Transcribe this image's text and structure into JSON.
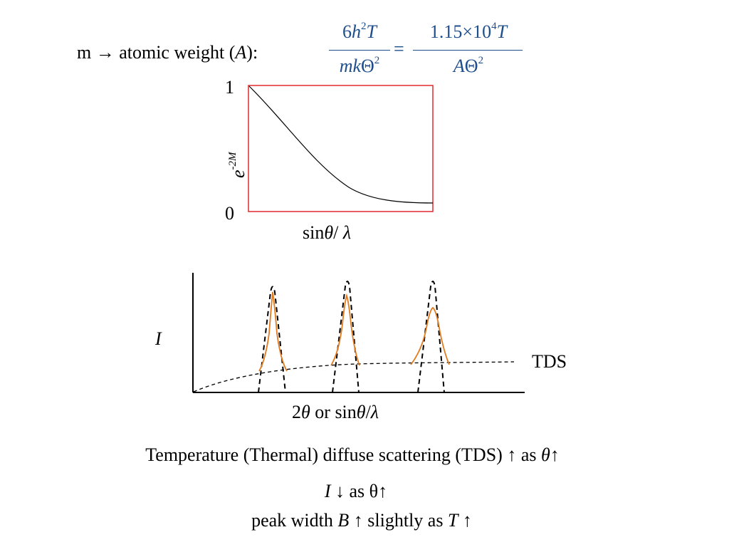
{
  "formula": {
    "prefix": "m → atomic weight (",
    "prefix_var": "A",
    "prefix_close": "):",
    "frac1_num": {
      "coef": "6",
      "h": "h",
      "h_exp": "2",
      "T": "T"
    },
    "frac1_den": {
      "mk": "mk",
      "Theta": "Θ",
      "exp": "2"
    },
    "equals": "=",
    "frac2_num": {
      "coef": "1.15×10",
      "exp": "4",
      "T": "T"
    },
    "frac2_den": {
      "A": "A",
      "Theta": "Θ",
      "exp": "2"
    }
  },
  "top_chart": {
    "y_top": "1",
    "y_bottom": "0",
    "ylabel_base": "e",
    "ylabel_exp": "-2M",
    "xlabel_sin": "sin",
    "xlabel_theta": "θ",
    "xlabel_rest": "/ ",
    "xlabel_lambda": "λ",
    "frame_color": "#e0282e",
    "curve_color": "#000000"
  },
  "intensity_chart": {
    "ylabel": "I",
    "tds_label": "TDS",
    "xlabel_2": "2",
    "xlabel_theta": "θ",
    "xlabel_or": " or sin",
    "xlabel_theta2": "θ",
    "xlabel_slash": "/",
    "xlabel_lambda": "λ",
    "peak_color": "#e07b1f",
    "dashed_color": "#000000"
  },
  "notes": {
    "line1_text": "Temperature (Thermal) diffuse scattering (TDS) ↑ as ",
    "line1_theta": "θ",
    "line1_arrow": "↑",
    "line2_var": "I",
    "line2_text": " ↓ as θ↑",
    "line3_text": "peak width ",
    "line3_B": "B",
    "line3_mid": " ↑ slightly as ",
    "line3_T": "T",
    "line3_end": " ↑"
  }
}
